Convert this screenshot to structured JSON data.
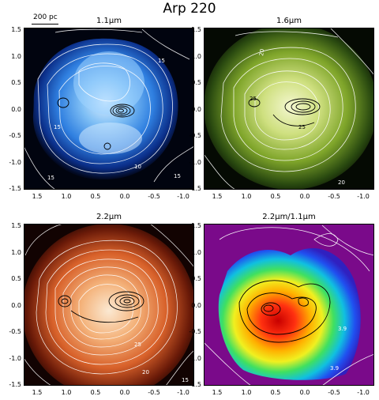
{
  "figure_title": "Arp 220",
  "scale_label": "200 pc",
  "panels": [
    {
      "title": "1.1μm",
      "contour_labels": [
        "15",
        "15",
        "15",
        "10",
        "15"
      ]
    },
    {
      "title": "1.6μm",
      "contour_labels": [
        "20",
        "25",
        "25",
        "20"
      ]
    },
    {
      "title": "2.2μm",
      "contour_labels": [
        "25",
        "20",
        "15"
      ]
    },
    {
      "title": "2.2μm/1.1μm",
      "contour_labels": [
        "3.9",
        "3.9"
      ]
    }
  ],
  "x_ticks": [
    "1.5",
    "1.0",
    "0.5",
    "0.0",
    "-0.5",
    "-1.0"
  ],
  "y_ticks": [
    "1.5",
    "1.0",
    "0.5",
    "0.0",
    "-0.5",
    "-1.0",
    "-1.5"
  ],
  "colors": {
    "blue": "#2f7fe0",
    "green": "#a9c93a",
    "orange": "#e07b33",
    "rainbow_red": "#e01010"
  }
}
